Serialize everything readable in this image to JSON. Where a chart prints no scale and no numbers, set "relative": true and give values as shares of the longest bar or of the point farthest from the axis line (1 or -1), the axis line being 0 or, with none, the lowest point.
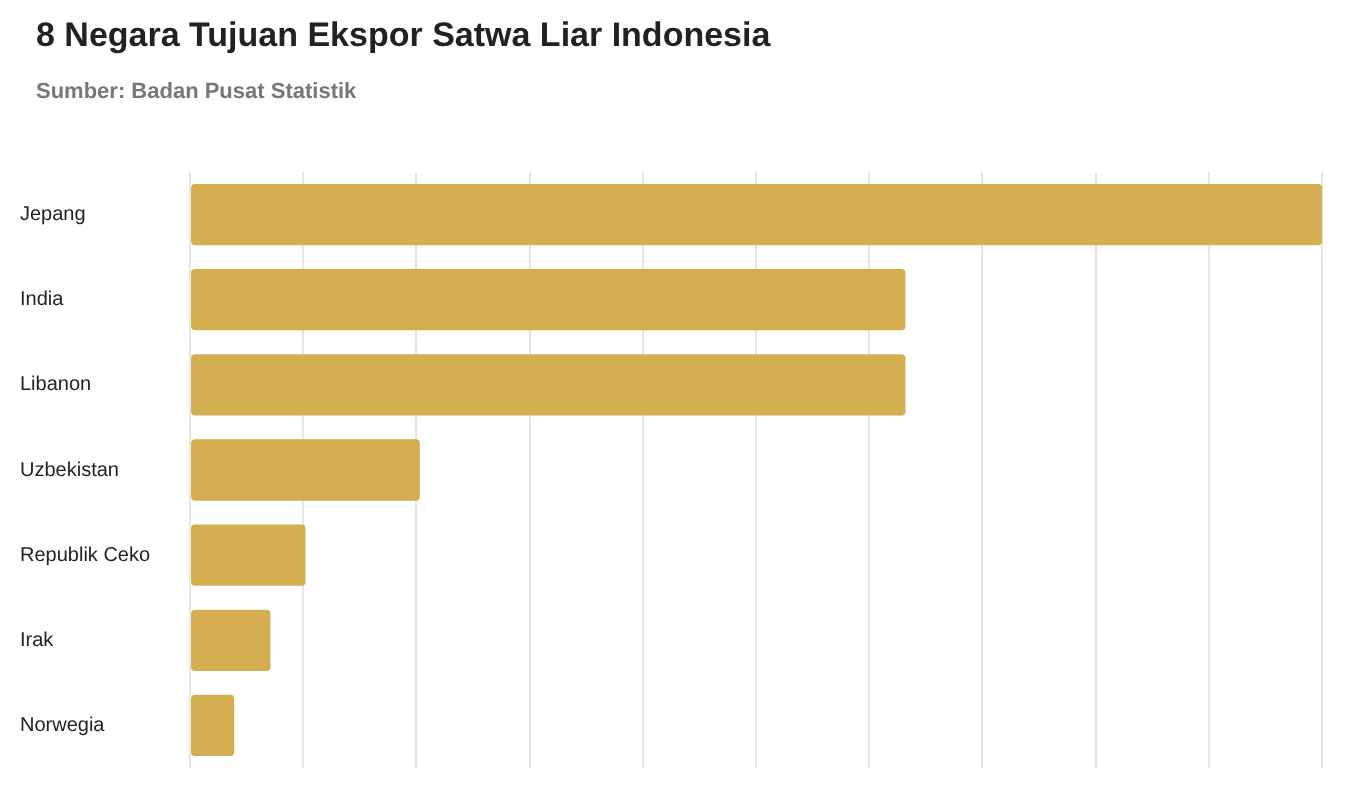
{
  "chart_data": {
    "type": "bar",
    "orientation": "horizontal",
    "relative": true,
    "title": "8 Negara Tujuan Ekspor Satwa Liar Indonesia",
    "subtitle": "Sumber: Badan Pusat Statistik",
    "categories": [
      "Jepang",
      "India",
      "Libanon",
      "Uzbekistan",
      "Republik Ceko",
      "Irak",
      "Norwegia"
    ],
    "values": [
      1,
      0.632,
      0.632,
      0.203,
      0.102,
      0.071,
      0.039
    ],
    "color": "#d4ae50",
    "grid": "x"
  }
}
